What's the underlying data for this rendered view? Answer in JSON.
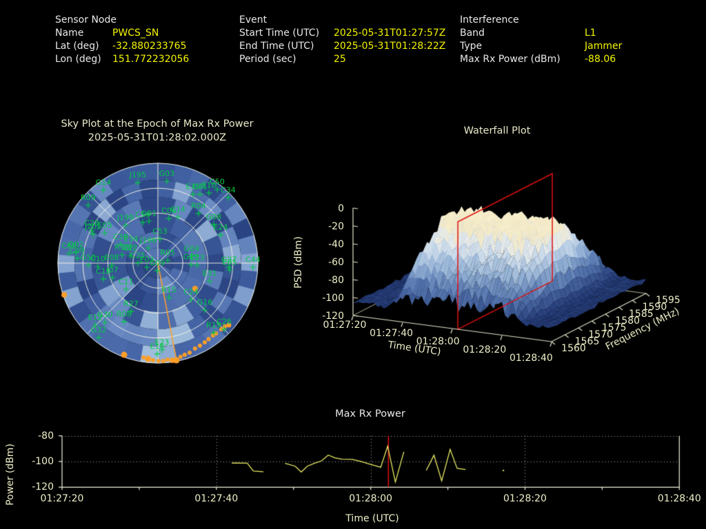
{
  "header": {
    "sensor": {
      "title": "Sensor Node",
      "rows": [
        {
          "label": "Name",
          "value": "PWCS_SN"
        },
        {
          "label": "Lat (deg)",
          "value": "-32.880233765"
        },
        {
          "label": "Lon (deg)",
          "value": "151.772232056"
        }
      ]
    },
    "event": {
      "title": "Event",
      "rows": [
        {
          "label": "Start Time (UTC)",
          "value": "2025-05-31T01:27:57Z"
        },
        {
          "label": "End Time (UTC)",
          "value": "2025-05-31T01:28:22Z"
        },
        {
          "label": "Period (sec)",
          "value": "25"
        }
      ]
    },
    "interference": {
      "title": "Interference",
      "rows": [
        {
          "label": "Band",
          "value": "L1"
        },
        {
          "label": "Type",
          "value": "Jammer"
        },
        {
          "label": "Max Rx Power (dBm)",
          "value": "-88.06"
        }
      ]
    }
  },
  "colors": {
    "background": "#000000",
    "value_text": "#f4f400",
    "label_text": "#e9e9e9",
    "plot_text": "#efefc8",
    "satellite": "#00cc44",
    "track": "#ffa028",
    "data_line": "#ecec66",
    "marker_line": "#e01010",
    "grid": "#f2f2dc"
  },
  "chart_data": [
    {
      "id": "sky_plot",
      "type": "heatmap",
      "title_line1": "Sky Plot at the Epoch of Max Rx Power",
      "title_line2": "2025-05-31T01:28:02.000Z",
      "grid": {
        "rings": 4,
        "spoke_step_deg": 45
      },
      "satellites": [
        {
          "id": "G14",
          "az": 323.3,
          "el": 7.9
        },
        {
          "id": "J195",
          "az": 346,
          "el": 15.2
        },
        {
          "id": "G03",
          "az": 6.2,
          "el": 15.7
        },
        {
          "id": "R09",
          "az": 309.7,
          "el": 8.4
        },
        {
          "id": "C50",
          "az": 38.8,
          "el": 4.8
        },
        {
          "id": "C34",
          "az": 47,
          "el": 3.5
        },
        {
          "id": "E36",
          "az": 27,
          "el": 20.3
        },
        {
          "id": "C41",
          "az": 31.4,
          "el": 17.3
        },
        {
          "id": "E10",
          "az": 36,
          "el": 11.8
        },
        {
          "id": "R04",
          "az": 39.3,
          "el": 32.2
        },
        {
          "id": "G08",
          "az": 55.3,
          "el": 28.9
        },
        {
          "id": "E24",
          "az": 65.7,
          "el": 28
        },
        {
          "id": "G27",
          "az": 93.3,
          "el": 25.9
        },
        {
          "id": "C44",
          "az": 92.5,
          "el": 4.3
        },
        {
          "id": "E05",
          "az": 95.5,
          "el": 25.1
        },
        {
          "id": "E31",
          "az": 109.1,
          "el": 40.7
        },
        {
          "id": "R15",
          "az": 162.3,
          "el": 57.4
        },
        {
          "id": "C24",
          "az": 137.8,
          "el": 45.6
        },
        {
          "id": "G16",
          "az": 135,
          "el": 30.3
        },
        {
          "id": "R19",
          "az": 141.3,
          "el": 9.6
        },
        {
          "id": "C26",
          "az": 135,
          "el": 5.7
        },
        {
          "id": "E23",
          "az": 177.3,
          "el": 11.7
        },
        {
          "id": "E16",
          "az": 180.4,
          "el": 8.1
        },
        {
          "id": "R27",
          "az": 209.1,
          "el": 40.3
        },
        {
          "id": "R08",
          "az": 210,
          "el": 29.1
        },
        {
          "id": "E12",
          "az": 225.3,
          "el": 10.6
        },
        {
          "id": "G30",
          "az": 221.8,
          "el": 18.4
        },
        {
          "id": "G32",
          "az": 218.5,
          "el": 4.3
        },
        {
          "id": "C11",
          "az": 230.5,
          "el": 52.9
        },
        {
          "id": "C19",
          "az": 253.8,
          "el": 38.9
        },
        {
          "id": "J07",
          "az": 252.3,
          "el": 47
        },
        {
          "id": "G50",
          "az": 268.3,
          "el": 27.3
        },
        {
          "id": "C10",
          "az": 266.7,
          "el": 35.9
        },
        {
          "id": "E08",
          "az": 267.4,
          "el": 48.4
        },
        {
          "id": "C25",
          "az": 270,
          "el": 72
        },
        {
          "id": "E03",
          "az": 249.4,
          "el": 79.4
        },
        {
          "id": "G09",
          "az": 185.2,
          "el": 83.2
        },
        {
          "id": "R05",
          "az": 74.1,
          "el": 80.9
        },
        {
          "id": "G04",
          "az": 78.5,
          "el": 59
        },
        {
          "id": "G19",
          "az": 92.4,
          "el": 60.2
        },
        {
          "id": "C23",
          "az": 93,
          "el": 54.6
        },
        {
          "id": "J202",
          "az": 294.1,
          "el": 26.1
        },
        {
          "id": "C28",
          "az": 296.1,
          "el": 23.7
        },
        {
          "id": "C05",
          "az": 299.7,
          "el": 34.9
        },
        {
          "id": "C60",
          "az": 276.2,
          "el": 9.5
        },
        {
          "id": "G02",
          "az": 277.7,
          "el": 15.5
        },
        {
          "id": "C09",
          "az": 273.4,
          "el": 17.3
        },
        {
          "id": "J199",
          "az": 319.5,
          "el": 45.1
        },
        {
          "id": "C59",
          "az": 339.6,
          "el": 50.9
        },
        {
          "id": "G01",
          "az": 348,
          "el": 51.3
        },
        {
          "id": "C06",
          "az": 13.8,
          "el": 48.5
        },
        {
          "id": "C14",
          "az": 23.4,
          "el": 44.7
        },
        {
          "id": "C53",
          "az": 4.9,
          "el": 68.2
        },
        {
          "id": "C38",
          "az": 296.6,
          "el": 52.5
        },
        {
          "id": "E34",
          "az": 301.6,
          "el": 61.6
        },
        {
          "id": "J196",
          "az": 327.5,
          "el": 73.8
        },
        {
          "id": "R18",
          "az": 283,
          "el": 56.9
        },
        {
          "id": "E22",
          "az": 285,
          "el": 64.2
        }
      ],
      "jammer_bearing": {
        "az": 169.2,
        "el_from": 90,
        "el_to": 0.9
      },
      "jammer_track": [
        {
          "az": 251.3,
          "el": 0.9,
          "r": 4
        },
        {
          "az": 200.2,
          "el": 2,
          "r": 4.5
        },
        {
          "az": 188.7,
          "el": 4,
          "r": 3
        },
        {
          "az": 185.8,
          "el": 3.3,
          "r": 4.5
        },
        {
          "az": 182.8,
          "el": 2.4,
          "r": 3
        },
        {
          "az": 179.6,
          "el": 1.9,
          "r": 3
        },
        {
          "az": 176.8,
          "el": 1.7,
          "r": 3
        },
        {
          "az": 174.3,
          "el": 2.7,
          "r": 3
        },
        {
          "az": 171.5,
          "el": 1.5,
          "r": 4
        },
        {
          "az": 169.2,
          "el": 0.9,
          "r": 4.5
        },
        {
          "az": 166.4,
          "el": 3.2,
          "r": 3
        },
        {
          "az": 163.7,
          "el": 4,
          "r": 3
        },
        {
          "az": 160.5,
          "el": 4.4,
          "r": 3
        },
        {
          "az": 156.5,
          "el": 6.1,
          "r": 3
        },
        {
          "az": 153,
          "el": 6.5,
          "r": 3
        },
        {
          "az": 149.4,
          "el": 7.1,
          "r": 3
        },
        {
          "az": 146.3,
          "el": 7.7,
          "r": 3
        },
        {
          "az": 142.7,
          "el": 8.1,
          "r": 3
        },
        {
          "az": 140.4,
          "el": 7.9,
          "r": 3
        },
        {
          "az": 136.2,
          "el": 7.5,
          "r": 3
        },
        {
          "az": 133.5,
          "el": 7,
          "r": 3
        },
        {
          "az": 131.2,
          "el": 5.1,
          "r": 3.5
        },
        {
          "az": 124.4,
          "el": 49.4,
          "r": 4
        }
      ]
    },
    {
      "id": "waterfall",
      "type": "surface3d",
      "title": "Waterfall Plot",
      "xlabel": "Time (UTC)",
      "ylabel": "Frequency (MHz)",
      "zlabel": "PSD (dBm)",
      "x_ticks": [
        "01:27:20",
        "01:27:40",
        "01:28:00",
        "01:28:20",
        "01:28:40"
      ],
      "y_ticks": [
        1560,
        1565,
        1570,
        1575,
        1580,
        1585,
        1590,
        1595
      ],
      "z_ticks": [
        0,
        -20,
        -40,
        -60,
        -80,
        -100,
        -120
      ],
      "zlim": [
        -120,
        0
      ],
      "surface": {
        "noise_floor_dbm": -105,
        "plateau_peak_dbm": -28,
        "plateau_start": "01:27:35",
        "plateau_end": "01:28:28",
        "slice_time": "01:28:02",
        "slice_offset_sec": 42.25
      }
    },
    {
      "id": "max_rx_power",
      "type": "line",
      "title": "Max Rx Power",
      "xlabel": "Time (UTC)",
      "ylabel": "Power (dBm)",
      "x_start": "01:27:20",
      "x_ticks": [
        "01:27:20",
        "01:27:40",
        "01:28:00",
        "01:28:20",
        "01:28:40"
      ],
      "x_tick_offsets_sec": [
        0,
        20,
        40,
        60,
        80
      ],
      "y_ticks": [
        -80,
        -100,
        -120
      ],
      "ylim": [
        -120,
        -80
      ],
      "marker_offset_sec": 42.3,
      "series_segments": [
        [
          [
            22,
            -101.2
          ],
          [
            24,
            -101.3
          ],
          [
            24.8,
            -107.5
          ],
          [
            26.1,
            -108
          ]
        ],
        [
          [
            28.9,
            -101.4
          ],
          [
            30.2,
            -103.6
          ],
          [
            31,
            -108.2
          ],
          [
            31.8,
            -103.6
          ],
          [
            32.7,
            -101.4
          ],
          [
            33.6,
            -99.6
          ],
          [
            34.5,
            -95
          ],
          [
            35.4,
            -97.3
          ],
          [
            36.3,
            -98.2
          ],
          [
            37.6,
            -98.3
          ],
          [
            38.8,
            -100.1
          ],
          [
            39.8,
            -102
          ],
          [
            40.6,
            -103.3
          ],
          [
            41.3,
            -104.5
          ],
          [
            42.2,
            -88.06
          ],
          [
            43.2,
            -116
          ],
          [
            44.3,
            -92.4
          ]
        ],
        [
          [
            47.2,
            -107
          ],
          [
            48.2,
            -95.1
          ],
          [
            49.2,
            -115.1
          ],
          [
            50.3,
            -90.5
          ],
          [
            51.2,
            -105.3
          ],
          [
            52.3,
            -106.2
          ]
        ],
        [
          [
            57.2,
            -107
          ]
        ]
      ]
    }
  ]
}
